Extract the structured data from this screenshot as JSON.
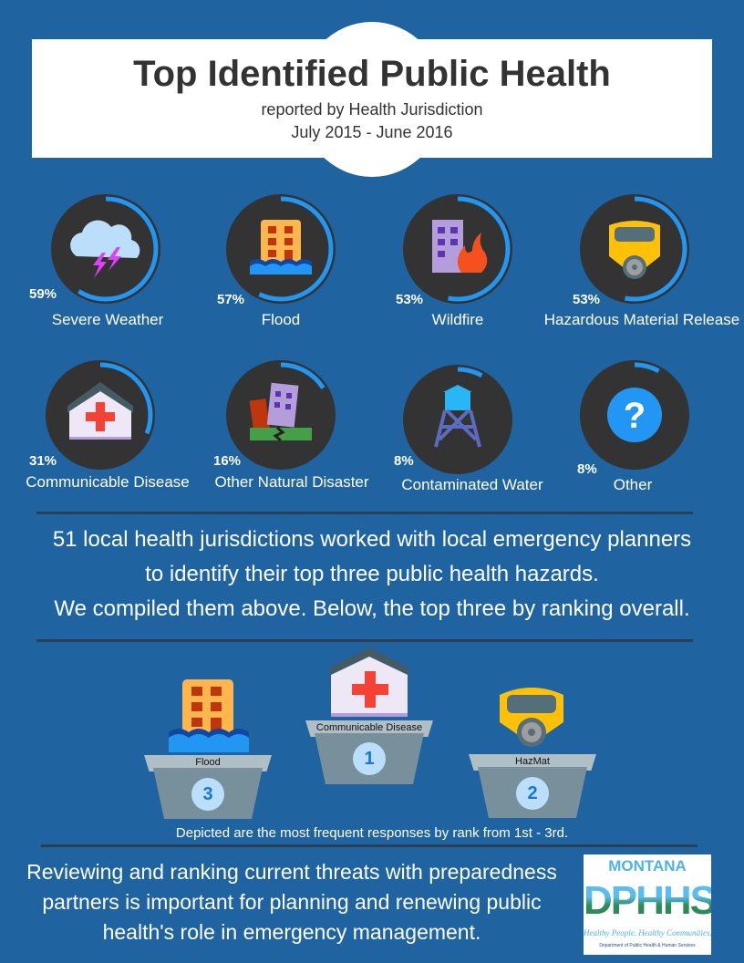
{
  "header": {
    "title": "Top Identified Public Health",
    "subtitle": "reported by Health Jurisdiction",
    "period": "July 2015 - June 2016"
  },
  "ring_color": "#2196f3",
  "hazards": [
    {
      "label": "Severe Weather",
      "percent": 59,
      "icon": "storm-cloud-icon"
    },
    {
      "label": "Flood",
      "percent": 57,
      "icon": "flooded-building-icon"
    },
    {
      "label": "Wildfire",
      "percent": 53,
      "icon": "building-fire-icon"
    },
    {
      "label": "Hazardous Material Release",
      "percent": 53,
      "icon": "gas-mask-icon"
    },
    {
      "label": "Communicable Disease",
      "percent": 31,
      "icon": "hospital-icon"
    },
    {
      "label": "Other Natural Disaster",
      "percent": 16,
      "icon": "earthquake-building-icon"
    },
    {
      "label": "Contaminated Water",
      "percent": 8,
      "icon": "water-tower-icon"
    },
    {
      "label": "Other",
      "percent": 8,
      "icon": "question-icon"
    }
  ],
  "pct_labels": [
    "59%",
    "57%",
    "53%",
    "53%",
    "31%",
    "16%",
    "8%",
    "8%"
  ],
  "summary": [
    "51 local health jurisdictions worked with local emergency planners",
    "to identify their top three public health hazards.",
    "We compiled them above. Below, the top three by ranking overall."
  ],
  "podium": [
    {
      "name": "Communicable Disease",
      "rank": "1"
    },
    {
      "name": "HazMat",
      "rank": "2"
    },
    {
      "name": "Flood",
      "rank": "3"
    }
  ],
  "podium_caption": "Depicted are the most frequent responses by rank from 1st - 3rd.",
  "footer": "Reviewing and ranking current threats with preparedness partners is important for planning and renewing public health's role in emergency management.",
  "logo": {
    "top": "MONTANA",
    "main": "DPHHS",
    "tagline": "Healthy People. Healthy Communities.",
    "dept": "Department of Public Health & Human Services"
  }
}
